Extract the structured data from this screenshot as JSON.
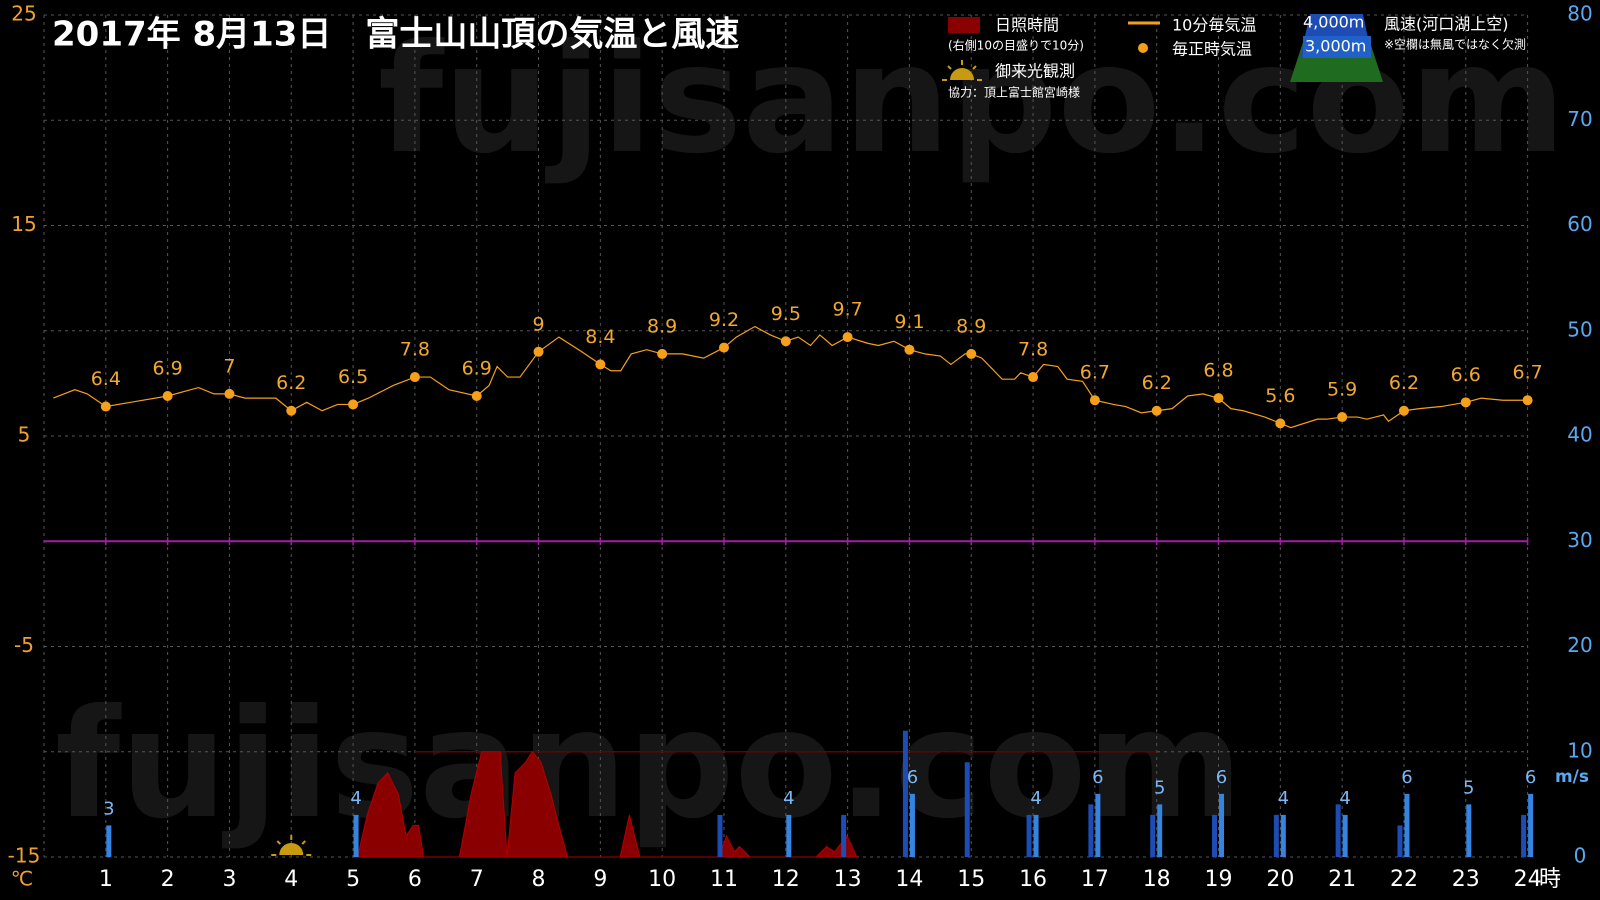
{
  "chart_data": {
    "type": "line",
    "title": "2017年  8月13日　富士山山頂の気温と風速",
    "watermark": "fujisanpo.com",
    "xlim": [
      0,
      24
    ],
    "xticks": [
      1,
      2,
      3,
      4,
      5,
      6,
      7,
      8,
      9,
      10,
      11,
      12,
      13,
      14,
      15,
      16,
      17,
      18,
      19,
      20,
      21,
      22,
      23,
      24
    ],
    "x_label": "時",
    "ylim": [
      -15,
      25
    ],
    "yticks": [
      -15,
      -5,
      5,
      15,
      25
    ],
    "y_label": "℃",
    "y2lim": [
      0,
      80
    ],
    "y2ticks": [
      0,
      10,
      20,
      30,
      40,
      50,
      60,
      70,
      80
    ],
    "y2_label": "m/s",
    "grid": true,
    "zero_line": 0,
    "sunshine_scale_line": {
      "x": [
        6,
        18
      ],
      "value": 10
    },
    "sunrise_x": 4,
    "legend": {
      "sunshine_note": "(右側10の目盛りで10分)",
      "sunrise": "御来光観測",
      "credit": "協力：頂上富士館宮崎様",
      "wind_title": "風速(河口湖上空)",
      "wind_note": "※空欄は無風ではなく欠測"
    },
    "series": [
      {
        "name": "10分毎気温",
        "color": "#f5a01a",
        "x": [
          0.15,
          0.5,
          0.7,
          1,
          2,
          2.5,
          2.75,
          3,
          3.25,
          3.75,
          4,
          4.25,
          4.5,
          4.75,
          5,
          5.25,
          5.65,
          6,
          6.25,
          6.55,
          7,
          7.2,
          7.33,
          7.5,
          7.7,
          8,
          8.33,
          8.7,
          9,
          9.17,
          9.33,
          9.5,
          9.75,
          10,
          10.33,
          10.67,
          11,
          11.2,
          11.5,
          11.75,
          12,
          12.2,
          12.4,
          12.55,
          12.75,
          13,
          13.33,
          13.5,
          13.75,
          14,
          14.25,
          14.5,
          14.67,
          14.9,
          15,
          15.17,
          15.5,
          15.7,
          15.8,
          16,
          16.17,
          16.4,
          16.55,
          16.8,
          17,
          17.3,
          17.5,
          17.75,
          18,
          18.25,
          18.5,
          18.75,
          19,
          19.2,
          19.4,
          19.75,
          20,
          20.17,
          20.6,
          20.75,
          21,
          21.25,
          21.4,
          21.67,
          21.75,
          22,
          22.25,
          22.6,
          23,
          23.25,
          23.6,
          24
        ],
        "values": [
          6.8,
          7.2,
          7.0,
          6.4,
          6.9,
          7.3,
          7.0,
          7.0,
          6.8,
          6.8,
          6.2,
          6.6,
          6.2,
          6.5,
          6.5,
          6.8,
          7.4,
          7.8,
          7.8,
          7.2,
          6.9,
          7.4,
          8.3,
          7.8,
          7.8,
          9.0,
          9.7,
          9.0,
          8.4,
          8.1,
          8.1,
          8.9,
          9.1,
          8.9,
          8.9,
          8.7,
          9.2,
          9.7,
          10.2,
          9.8,
          9.5,
          9.7,
          9.3,
          9.8,
          9.3,
          9.7,
          9.4,
          9.3,
          9.5,
          9.1,
          8.9,
          8.8,
          8.4,
          8.9,
          8.9,
          8.7,
          7.7,
          7.7,
          8.0,
          7.8,
          8.4,
          8.3,
          7.7,
          7.6,
          6.7,
          6.5,
          6.4,
          6.1,
          6.2,
          6.3,
          6.9,
          7.0,
          6.8,
          6.3,
          6.2,
          5.9,
          5.6,
          5.4,
          5.8,
          5.8,
          5.9,
          5.9,
          5.8,
          6.0,
          5.7,
          6.2,
          6.3,
          6.4,
          6.6,
          6.8,
          6.7,
          6.7
        ]
      },
      {
        "name": "毎正時気温",
        "color": "#f5a01a",
        "x": [
          1,
          2,
          3,
          4,
          5,
          6,
          7,
          8,
          9,
          10,
          11,
          12,
          13,
          14,
          15,
          16,
          17,
          18,
          19,
          20,
          21,
          22,
          23,
          24
        ],
        "values": [
          6.4,
          6.9,
          7,
          6.2,
          6.5,
          7.8,
          6.9,
          9,
          8.4,
          8.9,
          9.2,
          9.5,
          9.7,
          9.1,
          8.9,
          7.8,
          6.7,
          6.2,
          6.8,
          5.6,
          5.9,
          6.2,
          6.6,
          6.7
        ]
      },
      {
        "name": "4,000m",
        "color": "#1c4cb4",
        "axis": "y2",
        "x": [
          1,
          2,
          3,
          4,
          5,
          6,
          7,
          8,
          9,
          10,
          11,
          12,
          13,
          14,
          15,
          16,
          17,
          18,
          19,
          20,
          21,
          22,
          23,
          24
        ],
        "values": [
          null,
          null,
          null,
          null,
          null,
          null,
          null,
          null,
          null,
          null,
          4,
          null,
          4,
          12,
          9,
          4,
          5,
          4,
          4,
          4,
          5,
          3,
          null,
          4
        ]
      },
      {
        "name": "3,000m",
        "color": "#3484e0",
        "axis": "y2",
        "x": [
          1,
          2,
          3,
          4,
          5,
          6,
          7,
          8,
          9,
          10,
          11,
          12,
          13,
          14,
          15,
          16,
          17,
          18,
          19,
          20,
          21,
          22,
          23,
          24
        ],
        "values": [
          3,
          null,
          null,
          null,
          4,
          null,
          null,
          null,
          null,
          null,
          null,
          4,
          null,
          6,
          null,
          4,
          6,
          5,
          6,
          4,
          4,
          6,
          5,
          6
        ]
      },
      {
        "name": "日照時間",
        "color": "#8a0000",
        "axis": "y2",
        "x": [
          5.07,
          5.23,
          5.4,
          5.56,
          5.73,
          5.86,
          5.97,
          6.06,
          6.14,
          6.72,
          6.91,
          7.08,
          7.38,
          7.49,
          7.62,
          7.79,
          7.9,
          8.04,
          8.2,
          8.33,
          8.47,
          9.32,
          9.47,
          9.64,
          10.92,
          11.04,
          11.17,
          11.25,
          11.42,
          12.49,
          12.66,
          12.79,
          12.99,
          13.15
        ],
        "values": [
          0,
          4,
          7,
          8,
          6,
          2,
          3,
          3,
          0,
          0,
          6,
          10,
          10,
          0,
          8,
          9,
          10,
          9,
          6,
          3,
          0,
          0,
          4,
          0,
          0,
          2,
          0.5,
          1,
          0,
          0,
          1,
          0.5,
          2,
          0
        ]
      }
    ]
  }
}
